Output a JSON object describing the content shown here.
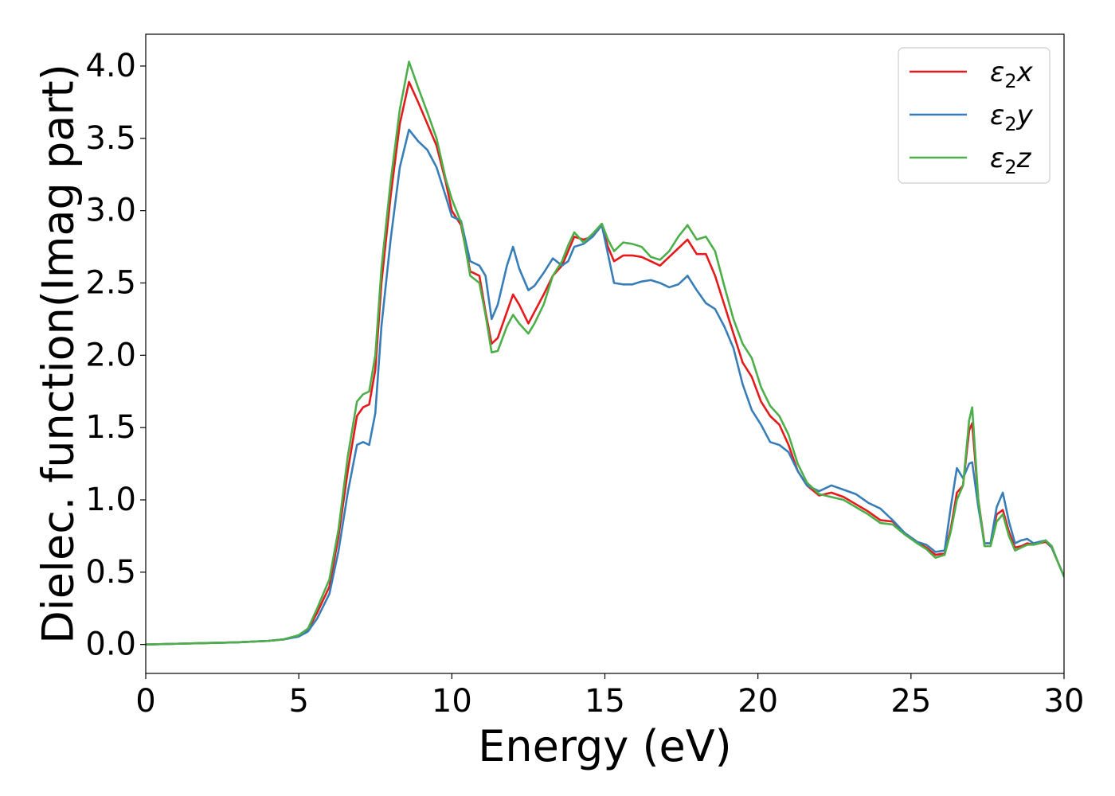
{
  "chart_data": {
    "type": "line",
    "xlabel": "Energy (eV)",
    "ylabel": "Dielec. function(Imag part)",
    "xlim": [
      0,
      30
    ],
    "ylim": [
      -0.2,
      4.22
    ],
    "xticks": [
      0,
      5,
      10,
      15,
      20,
      25,
      30
    ],
    "xtick_labels": [
      "0",
      "5",
      "10",
      "15",
      "20",
      "25",
      "30"
    ],
    "yticks": [
      0.0,
      0.5,
      1.0,
      1.5,
      2.0,
      2.5,
      3.0,
      3.5,
      4.0
    ],
    "ytick_labels": [
      "0.0",
      "0.5",
      "1.0",
      "1.5",
      "2.0",
      "2.5",
      "3.0",
      "3.5",
      "4.0"
    ],
    "grid": false,
    "legend_position": "top-right",
    "series": [
      {
        "name": "ε₂x",
        "legend_base": "ε",
        "legend_sub": "2",
        "legend_tail": "x",
        "color": "#e41a1c",
        "x": [
          0,
          1,
          2,
          3,
          4,
          4.5,
          5,
          5.3,
          5.6,
          6.0,
          6.3,
          6.6,
          6.9,
          7.1,
          7.3,
          7.5,
          7.7,
          8.0,
          8.3,
          8.6,
          8.9,
          9.2,
          9.5,
          9.8,
          10.0,
          10.3,
          10.6,
          10.9,
          11.1,
          11.3,
          11.5,
          11.8,
          12.0,
          12.2,
          12.5,
          12.7,
          13.0,
          13.3,
          13.6,
          13.8,
          14.0,
          14.3,
          14.6,
          14.9,
          15.1,
          15.3,
          15.6,
          15.9,
          16.2,
          16.5,
          16.8,
          17.1,
          17.4,
          17.7,
          18.0,
          18.3,
          18.6,
          18.9,
          19.2,
          19.5,
          19.8,
          20.1,
          20.4,
          20.7,
          21.0,
          21.3,
          21.6,
          22.0,
          22.4,
          22.8,
          23.2,
          23.6,
          24.0,
          24.4,
          24.8,
          25.2,
          25.5,
          25.8,
          26.1,
          26.3,
          26.5,
          26.7,
          26.9,
          27.0,
          27.2,
          27.4,
          27.6,
          27.8,
          28.0,
          28.2,
          28.4,
          28.6,
          28.8,
          29.0,
          29.2,
          29.4,
          29.6,
          29.8,
          30.0
        ],
        "y": [
          0.0,
          0.005,
          0.01,
          0.015,
          0.025,
          0.035,
          0.06,
          0.1,
          0.22,
          0.4,
          0.75,
          1.2,
          1.58,
          1.64,
          1.66,
          1.9,
          2.5,
          3.1,
          3.6,
          3.89,
          3.75,
          3.6,
          3.45,
          3.2,
          3.0,
          2.9,
          2.58,
          2.55,
          2.3,
          2.08,
          2.12,
          2.3,
          2.42,
          2.35,
          2.22,
          2.3,
          2.42,
          2.55,
          2.62,
          2.72,
          2.82,
          2.8,
          2.82,
          2.9,
          2.75,
          2.65,
          2.69,
          2.69,
          2.68,
          2.65,
          2.62,
          2.68,
          2.74,
          2.8,
          2.7,
          2.7,
          2.55,
          2.35,
          2.15,
          1.95,
          1.85,
          1.68,
          1.58,
          1.52,
          1.38,
          1.2,
          1.1,
          1.03,
          1.05,
          1.02,
          0.97,
          0.92,
          0.86,
          0.85,
          0.77,
          0.71,
          0.67,
          0.62,
          0.63,
          0.8,
          1.05,
          1.1,
          1.48,
          1.53,
          1.0,
          0.7,
          0.7,
          0.9,
          0.93,
          0.78,
          0.67,
          0.68,
          0.7,
          0.69,
          0.7,
          0.71,
          0.67,
          0.57,
          0.47
        ]
      },
      {
        "name": "ε₂y",
        "legend_base": "ε",
        "legend_sub": "2",
        "legend_tail": "y",
        "color": "#377eb8",
        "x": [
          0,
          1,
          2,
          3,
          4,
          4.5,
          5,
          5.3,
          5.6,
          6.0,
          6.3,
          6.6,
          6.9,
          7.1,
          7.3,
          7.5,
          7.7,
          8.0,
          8.3,
          8.6,
          8.9,
          9.2,
          9.5,
          9.8,
          10.0,
          10.3,
          10.6,
          10.9,
          11.1,
          11.3,
          11.5,
          11.8,
          12.0,
          12.2,
          12.5,
          12.7,
          13.0,
          13.3,
          13.6,
          13.8,
          14.0,
          14.3,
          14.6,
          14.9,
          15.1,
          15.3,
          15.6,
          15.9,
          16.2,
          16.5,
          16.8,
          17.1,
          17.4,
          17.7,
          18.0,
          18.3,
          18.6,
          18.9,
          19.2,
          19.5,
          19.8,
          20.1,
          20.4,
          20.7,
          21.0,
          21.3,
          21.6,
          22.0,
          22.4,
          22.8,
          23.2,
          23.6,
          24.0,
          24.4,
          24.8,
          25.2,
          25.5,
          25.8,
          26.1,
          26.3,
          26.5,
          26.7,
          26.9,
          27.0,
          27.2,
          27.4,
          27.6,
          27.8,
          28.0,
          28.2,
          28.4,
          28.6,
          28.8,
          29.0,
          29.2,
          29.4,
          29.6,
          29.8,
          30.0
        ],
        "y": [
          0.0,
          0.005,
          0.01,
          0.015,
          0.025,
          0.035,
          0.055,
          0.09,
          0.18,
          0.35,
          0.65,
          1.05,
          1.38,
          1.4,
          1.38,
          1.6,
          2.2,
          2.8,
          3.3,
          3.56,
          3.48,
          3.42,
          3.3,
          3.1,
          2.96,
          2.93,
          2.65,
          2.62,
          2.55,
          2.25,
          2.35,
          2.62,
          2.75,
          2.6,
          2.45,
          2.48,
          2.57,
          2.67,
          2.62,
          2.65,
          2.75,
          2.77,
          2.82,
          2.9,
          2.7,
          2.5,
          2.49,
          2.49,
          2.51,
          2.52,
          2.5,
          2.47,
          2.49,
          2.55,
          2.45,
          2.36,
          2.32,
          2.2,
          2.05,
          1.8,
          1.62,
          1.52,
          1.4,
          1.38,
          1.33,
          1.2,
          1.1,
          1.06,
          1.1,
          1.07,
          1.04,
          0.98,
          0.94,
          0.86,
          0.77,
          0.71,
          0.69,
          0.64,
          0.65,
          0.95,
          1.22,
          1.15,
          1.25,
          1.26,
          0.95,
          0.7,
          0.7,
          0.95,
          1.05,
          0.85,
          0.7,
          0.72,
          0.73,
          0.7,
          0.71,
          0.72,
          0.67,
          0.57,
          0.47
        ]
      },
      {
        "name": "ε₂z",
        "legend_base": "ε",
        "legend_sub": "2",
        "legend_tail": "z",
        "color": "#4daf4a",
        "x": [
          0,
          1,
          2,
          3,
          4,
          4.5,
          5,
          5.3,
          5.6,
          6.0,
          6.3,
          6.6,
          6.9,
          7.1,
          7.3,
          7.5,
          7.7,
          8.0,
          8.3,
          8.6,
          8.9,
          9.2,
          9.5,
          9.8,
          10.0,
          10.3,
          10.6,
          10.9,
          11.1,
          11.3,
          11.5,
          11.8,
          12.0,
          12.2,
          12.5,
          12.7,
          13.0,
          13.3,
          13.6,
          13.8,
          14.0,
          14.3,
          14.6,
          14.9,
          15.1,
          15.3,
          15.6,
          15.9,
          16.2,
          16.5,
          16.8,
          17.1,
          17.4,
          17.7,
          18.0,
          18.3,
          18.6,
          18.9,
          19.2,
          19.5,
          19.8,
          20.1,
          20.4,
          20.7,
          21.0,
          21.3,
          21.6,
          22.0,
          22.4,
          22.8,
          23.2,
          23.6,
          24.0,
          24.4,
          24.8,
          25.2,
          25.5,
          25.8,
          26.1,
          26.3,
          26.5,
          26.7,
          26.9,
          27.0,
          27.2,
          27.4,
          27.6,
          27.8,
          28.0,
          28.2,
          28.4,
          28.6,
          28.8,
          29.0,
          29.2,
          29.4,
          29.6,
          29.8,
          30.0
        ],
        "y": [
          0.0,
          0.005,
          0.01,
          0.015,
          0.025,
          0.035,
          0.065,
          0.11,
          0.25,
          0.45,
          0.8,
          1.3,
          1.68,
          1.73,
          1.75,
          2.0,
          2.6,
          3.2,
          3.7,
          4.03,
          3.85,
          3.68,
          3.5,
          3.22,
          3.08,
          2.92,
          2.55,
          2.5,
          2.28,
          2.02,
          2.03,
          2.2,
          2.28,
          2.22,
          2.15,
          2.22,
          2.35,
          2.55,
          2.65,
          2.76,
          2.85,
          2.78,
          2.84,
          2.91,
          2.8,
          2.72,
          2.78,
          2.77,
          2.75,
          2.68,
          2.66,
          2.72,
          2.82,
          2.9,
          2.8,
          2.82,
          2.72,
          2.48,
          2.25,
          2.08,
          1.98,
          1.78,
          1.65,
          1.58,
          1.45,
          1.25,
          1.12,
          1.04,
          1.02,
          1.0,
          0.95,
          0.9,
          0.84,
          0.83,
          0.76,
          0.7,
          0.66,
          0.6,
          0.62,
          0.78,
          1.0,
          1.1,
          1.55,
          1.64,
          1.0,
          0.68,
          0.68,
          0.85,
          0.9,
          0.75,
          0.65,
          0.67,
          0.69,
          0.69,
          0.7,
          0.72,
          0.68,
          0.57,
          0.47
        ]
      }
    ]
  }
}
